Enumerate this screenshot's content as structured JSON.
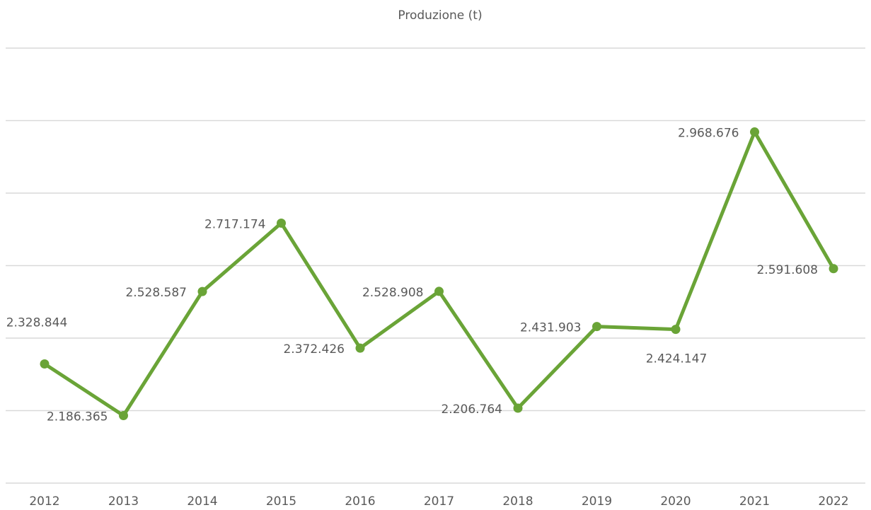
{
  "chart_data": {
    "type": "line",
    "title": "Produzione (t)",
    "categories": [
      "2012",
      "2013",
      "2014",
      "2015",
      "2016",
      "2017",
      "2018",
      "2019",
      "2020",
      "2021",
      "2022"
    ],
    "series": [
      {
        "name": "Produzione (t)",
        "color": "#6aa437",
        "values": [
          2328844,
          2186365,
          2528587,
          2717174,
          2372426,
          2528908,
          2206764,
          2431903,
          2424147,
          2968676,
          2591608
        ],
        "value_labels": [
          "2.328.844",
          "2.186.365",
          "2.528.587",
          "2.717.174",
          "2.372.426",
          "2.528.908",
          "2.206.764",
          "2.431.903",
          "2.424.147",
          "2.968.676",
          "2.591.608"
        ]
      }
    ],
    "ylim": [
      2000000,
      3200000
    ],
    "yticks": [
      2000000,
      2200000,
      2400000,
      2600000,
      2800000,
      3000000,
      3200000
    ],
    "grid": true
  }
}
